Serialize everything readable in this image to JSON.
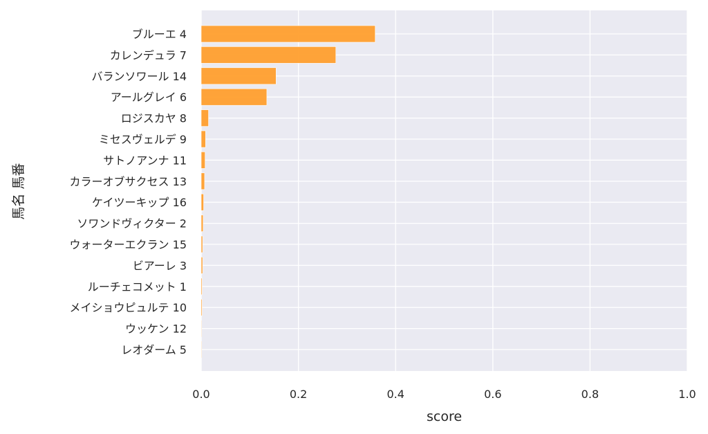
{
  "chart_data": {
    "type": "bar",
    "orientation": "horizontal",
    "categories": [
      "ブルーエ 4",
      "カレンデュラ 7",
      "バランソワール 14",
      "アールグレイ 6",
      "ロジスカヤ 8",
      "ミセスヴェルデ 9",
      "サトノアンナ 11",
      "カラーオブサクセス 13",
      "ケイツーキップ 16",
      "ソワンドヴィクター 2",
      "ウォーターエクラン 15",
      "ビアーレ 3",
      "ルーチェコメット 1",
      "メイショウピュルテ 10",
      "ウッケン 12",
      "レオダーム 5"
    ],
    "values": [
      0.358,
      0.277,
      0.154,
      0.135,
      0.015,
      0.009,
      0.008,
      0.007,
      0.005,
      0.004,
      0.003,
      0.003,
      0.002,
      0.002,
      0.001,
      0.001
    ],
    "xlabel": "score",
    "ylabel": "馬名 馬番",
    "xlim": [
      0,
      1.0
    ],
    "xticks": [
      "0.0",
      "0.2",
      "0.4",
      "0.6",
      "0.8",
      "1.0"
    ],
    "grid": true,
    "colors": {
      "bar": "#ff9f2e",
      "plot_background": "#eaeaf2",
      "grid": "#ffffff",
      "text": "#262626"
    }
  }
}
